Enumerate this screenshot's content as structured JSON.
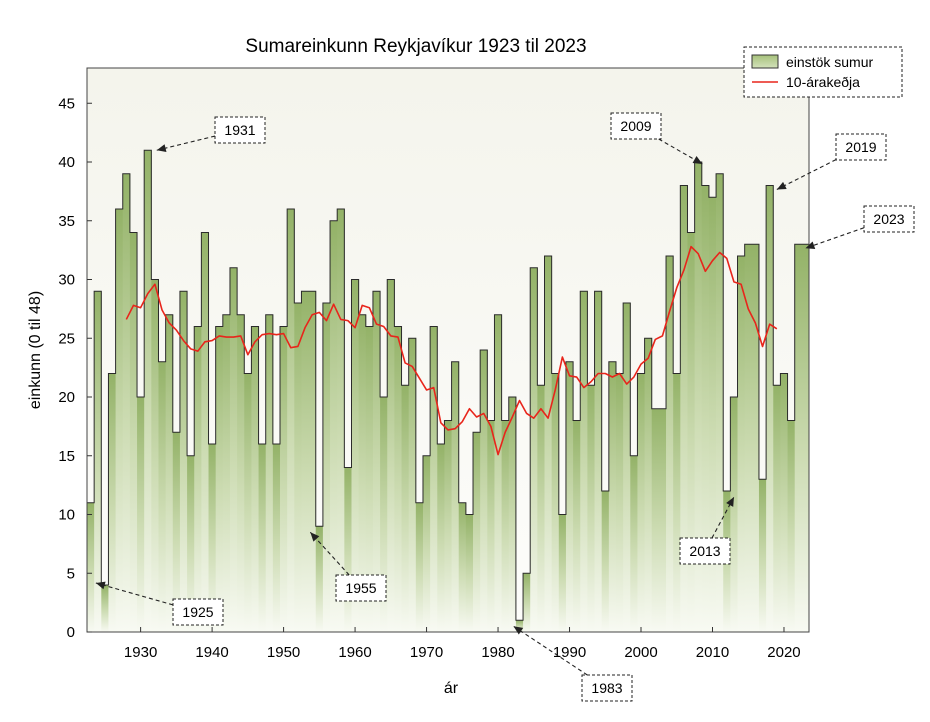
{
  "chart_data": {
    "type": "area",
    "title": "Sumareinkunn Reykjavíkur 1923 til 2023",
    "xlabel": "ár",
    "ylabel": "einkunn (0 til 48)",
    "xlim": [
      1922.5,
      2023.5
    ],
    "ylim": [
      0,
      48
    ],
    "xticks": [
      1930,
      1940,
      1950,
      1960,
      1970,
      1980,
      1990,
      2000,
      2010,
      2020
    ],
    "yticks": [
      0,
      5,
      10,
      15,
      20,
      25,
      30,
      35,
      40,
      45
    ],
    "grid": false,
    "legend_position": "top-right",
    "series": [
      {
        "name": "einstök sumur",
        "style": "step-area",
        "color": "#b5cc8e",
        "x": [
          1923,
          1924,
          1925,
          1926,
          1927,
          1928,
          1929,
          1930,
          1931,
          1932,
          1933,
          1934,
          1935,
          1936,
          1937,
          1938,
          1939,
          1940,
          1941,
          1942,
          1943,
          1944,
          1945,
          1946,
          1947,
          1948,
          1949,
          1950,
          1951,
          1952,
          1953,
          1954,
          1955,
          1956,
          1957,
          1958,
          1959,
          1960,
          1961,
          1962,
          1963,
          1964,
          1965,
          1966,
          1967,
          1968,
          1969,
          1970,
          1971,
          1972,
          1973,
          1974,
          1975,
          1976,
          1977,
          1978,
          1979,
          1980,
          1981,
          1982,
          1983,
          1984,
          1985,
          1986,
          1987,
          1988,
          1989,
          1990,
          1991,
          1992,
          1993,
          1994,
          1995,
          1996,
          1997,
          1998,
          1999,
          2000,
          2001,
          2002,
          2003,
          2004,
          2005,
          2006,
          2007,
          2008,
          2009,
          2010,
          2011,
          2012,
          2013,
          2014,
          2015,
          2016,
          2017,
          2018,
          2019,
          2020,
          2021,
          2022,
          2023
        ],
        "values": [
          11,
          29,
          4,
          22,
          36,
          39,
          34,
          20,
          41,
          30,
          23,
          27,
          17,
          29,
          15,
          26,
          34,
          16,
          26,
          27,
          31,
          27,
          22,
          26,
          16,
          27,
          16,
          26,
          36,
          28,
          29,
          29,
          9,
          28,
          35,
          36,
          14,
          30,
          27,
          26,
          29,
          20,
          30,
          26,
          21,
          25,
          11,
          15,
          26,
          16,
          18,
          23,
          11,
          10,
          17,
          24,
          18,
          27,
          18,
          20,
          1,
          5,
          31,
          21,
          32,
          22,
          10,
          23,
          18,
          29,
          21,
          29,
          12,
          23,
          22,
          28,
          15,
          22,
          25,
          19,
          19,
          32,
          22,
          38,
          34,
          40,
          38,
          37,
          39,
          12,
          20,
          32,
          33,
          33,
          13,
          38,
          21,
          22,
          18,
          33,
          33
        ]
      },
      {
        "name": "10-árakeðja",
        "style": "line",
        "color": "#e8251b",
        "x": [
          1928,
          1929,
          1930,
          1931,
          1932,
          1933,
          1934,
          1935,
          1936,
          1937,
          1938,
          1939,
          1940,
          1941,
          1942,
          1943,
          1944,
          1945,
          1946,
          1947,
          1948,
          1949,
          1950,
          1951,
          1952,
          1953,
          1954,
          1955,
          1956,
          1957,
          1958,
          1959,
          1960,
          1961,
          1962,
          1963,
          1964,
          1965,
          1966,
          1967,
          1968,
          1969,
          1970,
          1971,
          1972,
          1973,
          1974,
          1975,
          1976,
          1977,
          1978,
          1979,
          1980,
          1981,
          1982,
          1983,
          1984,
          1985,
          1986,
          1987,
          1988,
          1989,
          1990,
          1991,
          1992,
          1993,
          1994,
          1995,
          1996,
          1997,
          1998,
          1999,
          2000,
          2001,
          2002,
          2003,
          2004,
          2005,
          2006,
          2007,
          2008,
          2009,
          2010,
          2011,
          2012,
          2013,
          2014,
          2015,
          2016,
          2017,
          2018,
          2019
        ],
        "values": [
          26.6,
          27.8,
          27.6,
          28.8,
          29.6,
          27.4,
          26.3,
          25.7,
          24.8,
          24.1,
          23.9,
          24.7,
          24.8,
          25.2,
          25.1,
          25.1,
          25.2,
          23.6,
          24.7,
          25.3,
          25.4,
          25.3,
          25.4,
          24.2,
          24.3,
          25.9,
          27.0,
          27.2,
          26.5,
          27.9,
          26.6,
          26.5,
          25.9,
          27.8,
          27.6,
          26.2,
          26.0,
          25.2,
          25.1,
          22.9,
          22.6,
          21.6,
          20.6,
          20.8,
          17.8,
          17.2,
          17.3,
          17.9,
          19.0,
          18.3,
          18.6,
          17.5,
          15.1,
          17.0,
          18.3,
          19.7,
          18.6,
          18.2,
          19.0,
          18.2,
          20.6,
          23.4,
          21.8,
          21.7,
          20.8,
          21.3,
          22.0,
          22.0,
          21.7,
          22.0,
          21.1,
          21.7,
          22.8,
          23.3,
          24.9,
          25.2,
          27.3,
          29.3,
          30.8,
          32.8,
          32.2,
          30.7,
          31.6,
          32.3,
          31.8,
          29.8,
          29.6,
          27.5,
          26.3,
          24.3,
          26.2,
          25.8
        ]
      }
    ],
    "annotations": [
      {
        "label": "1931",
        "points_to": [
          1931,
          41
        ]
      },
      {
        "label": "1925",
        "points_to": [
          1925,
          4
        ]
      },
      {
        "label": "1955",
        "points_to": [
          1955,
          9
        ]
      },
      {
        "label": "1983",
        "points_to": [
          1983,
          1
        ]
      },
      {
        "label": "2009",
        "points_to": [
          2009,
          40
        ]
      },
      {
        "label": "2013",
        "points_to": [
          2013,
          12
        ]
      },
      {
        "label": "2019",
        "points_to": [
          2019,
          38
        ]
      },
      {
        "label": "2023",
        "points_to": [
          2023,
          33
        ]
      }
    ]
  }
}
